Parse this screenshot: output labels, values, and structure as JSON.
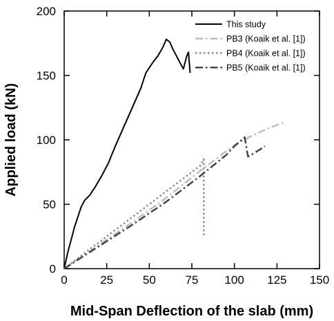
{
  "chart_data": {
    "type": "line",
    "xlabel": "Mid-Span Deflection of the slab (mm)",
    "ylabel": "Applied load (kN)",
    "xlim": [
      0,
      150
    ],
    "ylim": [
      0,
      200
    ],
    "xticks": [
      0,
      25,
      50,
      75,
      100,
      125,
      150
    ],
    "yticks": [
      0,
      50,
      100,
      150,
      200
    ],
    "grid": false,
    "legend_position": "top-right",
    "series": [
      {
        "name": "This study",
        "color": "#000000",
        "style": "solid",
        "points": [
          [
            0,
            0
          ],
          [
            2,
            12
          ],
          [
            4,
            22
          ],
          [
            6,
            32
          ],
          [
            8,
            40
          ],
          [
            10,
            48
          ],
          [
            12,
            53
          ],
          [
            15,
            57
          ],
          [
            18,
            63
          ],
          [
            22,
            72
          ],
          [
            26,
            82
          ],
          [
            30,
            95
          ],
          [
            35,
            110
          ],
          [
            40,
            125
          ],
          [
            45,
            140
          ],
          [
            48,
            152
          ],
          [
            52,
            160
          ],
          [
            55,
            165
          ],
          [
            58,
            172
          ],
          [
            60,
            178
          ],
          [
            62,
            176
          ],
          [
            64,
            170
          ],
          [
            66,
            165
          ],
          [
            68,
            160
          ],
          [
            70,
            155
          ],
          [
            72,
            165
          ],
          [
            73,
            168
          ],
          [
            74,
            152
          ]
        ]
      },
      {
        "name": "PB3 (Koaik et al. [1])",
        "color": "#bdbdbd",
        "style": "dashdot",
        "points": [
          [
            0,
            0
          ],
          [
            20,
            18
          ],
          [
            40,
            36
          ],
          [
            60,
            55
          ],
          [
            80,
            76
          ],
          [
            100,
            96
          ],
          [
            110,
            103
          ],
          [
            120,
            109
          ],
          [
            130,
            114
          ]
        ]
      },
      {
        "name": "PB4 (Koaik et al. [1])",
        "color": "#8a8a8a",
        "style": "dotted",
        "points": [
          [
            0,
            0
          ],
          [
            20,
            20
          ],
          [
            40,
            40
          ],
          [
            60,
            60
          ],
          [
            70,
            70
          ],
          [
            80,
            80
          ],
          [
            82,
            85
          ],
          [
            82,
            24
          ]
        ]
      },
      {
        "name": "PB5 (Koaik et al. [1])",
        "color": "#444444",
        "style": "dashdot",
        "points": [
          [
            0,
            0
          ],
          [
            20,
            17
          ],
          [
            40,
            34
          ],
          [
            60,
            52
          ],
          [
            80,
            72
          ],
          [
            95,
            88
          ],
          [
            100,
            95
          ],
          [
            106,
            102
          ],
          [
            108,
            87
          ],
          [
            112,
            90
          ],
          [
            118,
            95
          ]
        ]
      }
    ]
  }
}
